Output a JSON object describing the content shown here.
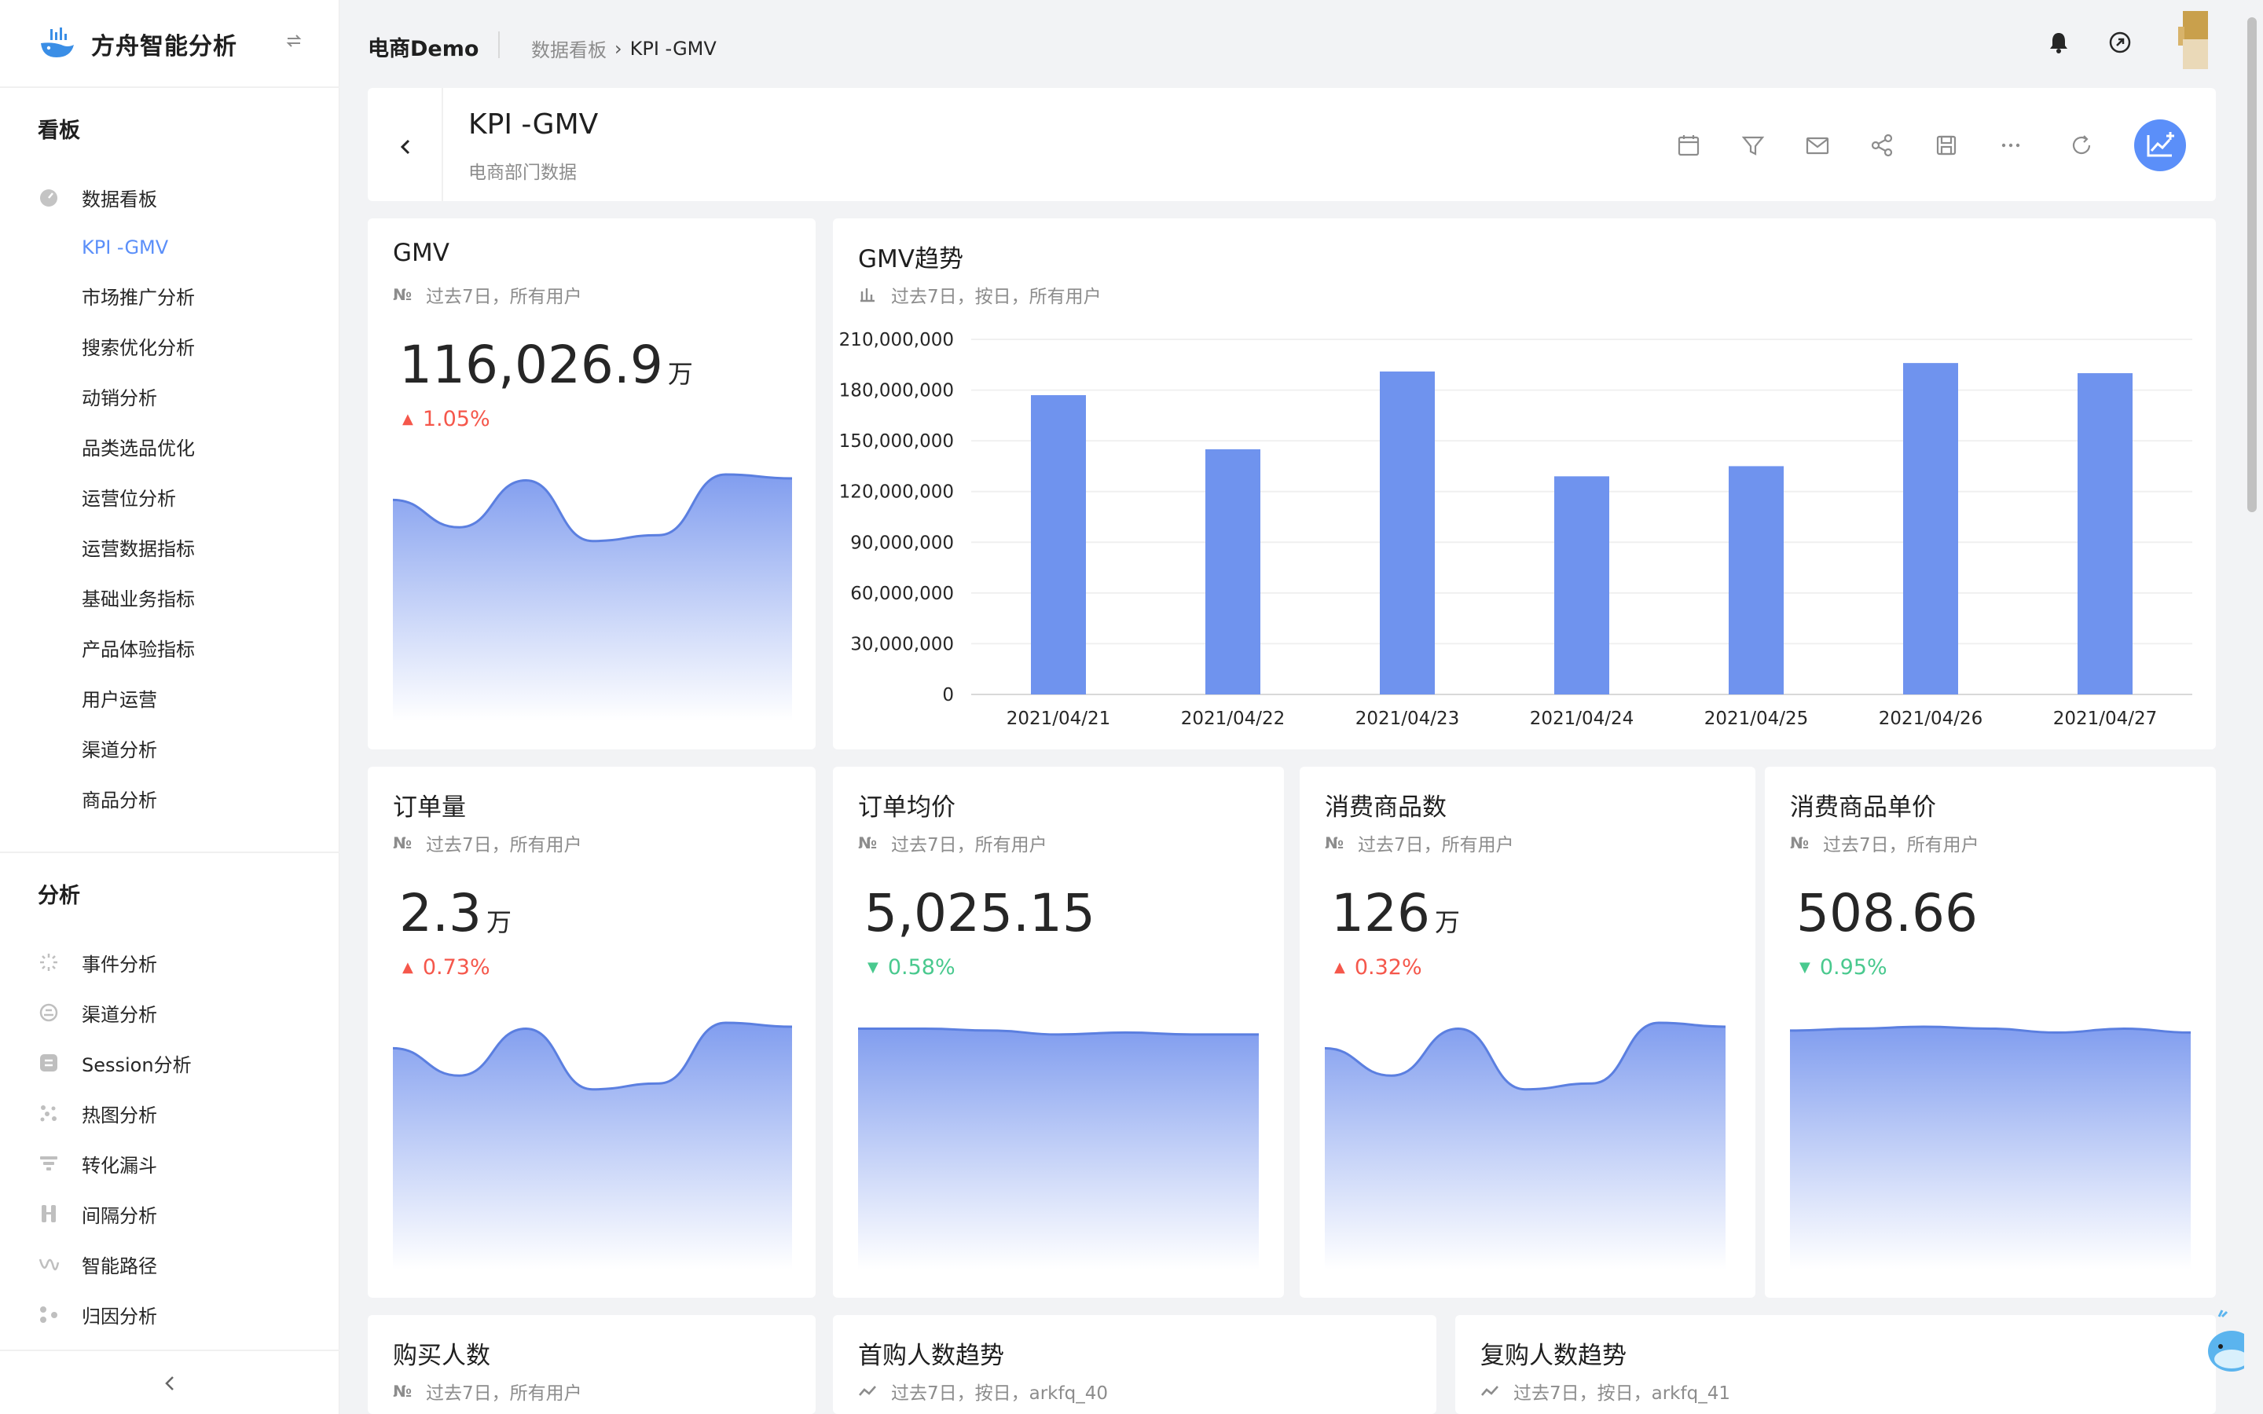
{
  "app": {
    "name": "方舟智能分析"
  },
  "sidebar": {
    "section_board": "看板",
    "board_root": "数据看板",
    "boards": [
      "KPI -GMV",
      "市场推广分析",
      "搜索优化分析",
      "动销分析",
      "品类选品优化",
      "运营位分析",
      "运营数据指标",
      "基础业务指标",
      "产品体验指标",
      "用户运营",
      "渠道分析",
      "商品分析"
    ],
    "active_board": "KPI -GMV",
    "section_analysis": "分析",
    "analysis": [
      {
        "label": "事件分析",
        "icon": "event-icon"
      },
      {
        "label": "渠道分析",
        "icon": "channel-icon"
      },
      {
        "label": "Session分析",
        "icon": "session-icon"
      },
      {
        "label": "热图分析",
        "icon": "heatmap-icon"
      },
      {
        "label": "转化漏斗",
        "icon": "funnel-icon"
      },
      {
        "label": "间隔分析",
        "icon": "interval-icon"
      },
      {
        "label": "智能路径",
        "icon": "path-icon"
      },
      {
        "label": "归因分析",
        "icon": "attribution-icon"
      }
    ]
  },
  "header": {
    "project": "电商Demo",
    "breadcrumb_root": "数据看板",
    "breadcrumb_current": "KPI -GMV"
  },
  "dashboard": {
    "title": "KPI -GMV",
    "subtitle": "电商部门数据",
    "tools": [
      "calendar-icon",
      "filter-icon",
      "mail-icon",
      "share-icon",
      "save-icon",
      "more-icon",
      "refresh-icon",
      "add-chart-icon"
    ]
  },
  "colors": {
    "accent": "#5b8ff9",
    "up": "#f5574b",
    "down": "#49c98e",
    "bar": "#6f93ee"
  },
  "cards": {
    "gmv": {
      "title": "GMV",
      "meta": "过去7日，所有用户",
      "value": "116,026.9",
      "unit": "万",
      "delta": "1.05%",
      "dir": "up"
    },
    "orders": {
      "title": "订单量",
      "meta": "过去7日，所有用户",
      "value": "2.3",
      "unit": "万",
      "delta": "0.73%",
      "dir": "up"
    },
    "avg_order": {
      "title": "订单均价",
      "meta": "过去7日，所有用户",
      "value": "5,025.15",
      "unit": "",
      "delta": "0.58%",
      "dir": "down"
    },
    "items": {
      "title": "消费商品数",
      "meta": "过去7日，所有用户",
      "value": "126",
      "unit": "万",
      "delta": "0.32%",
      "dir": "up"
    },
    "item_price": {
      "title": "消费商品单价",
      "meta": "过去7日，所有用户",
      "value": "508.66",
      "unit": "",
      "delta": "0.95%",
      "dir": "down"
    },
    "buyers": {
      "title": "购买人数",
      "meta": "过去7日，所有用户"
    },
    "first_buy": {
      "title": "首购人数趋势",
      "meta": "过去7日，按日，arkfq_40"
    },
    "repeat_buy": {
      "title": "复购人数趋势",
      "meta": "过去7日，按日，arkfq_41"
    },
    "gmv_trend": {
      "title": "GMV趋势",
      "meta": "过去7日，按日，所有用户"
    }
  },
  "chart_data": {
    "type": "bar",
    "title": "GMV趋势",
    "categories": [
      "2021/04/21",
      "2021/04/22",
      "2021/04/23",
      "2021/04/24",
      "2021/04/25",
      "2021/04/26",
      "2021/04/27"
    ],
    "values": [
      177000000,
      145000000,
      191000000,
      129000000,
      135000000,
      196000000,
      190000000
    ],
    "ylim": [
      0,
      210000000
    ],
    "yticks": [
      "0",
      "30,000,000",
      "60,000,000",
      "90,000,000",
      "120,000,000",
      "150,000,000",
      "180,000,000",
      "210,000,000"
    ],
    "grid": true
  },
  "sparklines": {
    "gmv": [
      0.83,
      0.69,
      0.93,
      0.62,
      0.65,
      0.96,
      0.94
    ],
    "orders": [
      0.83,
      0.69,
      0.93,
      0.62,
      0.65,
      0.96,
      0.94
    ],
    "avg_order": [
      0.93,
      0.93,
      0.92,
      0.9,
      0.91,
      0.9,
      0.9
    ],
    "items": [
      0.83,
      0.69,
      0.93,
      0.62,
      0.65,
      0.96,
      0.94
    ],
    "item_price": [
      0.92,
      0.93,
      0.94,
      0.93,
      0.91,
      0.93,
      0.91
    ]
  }
}
